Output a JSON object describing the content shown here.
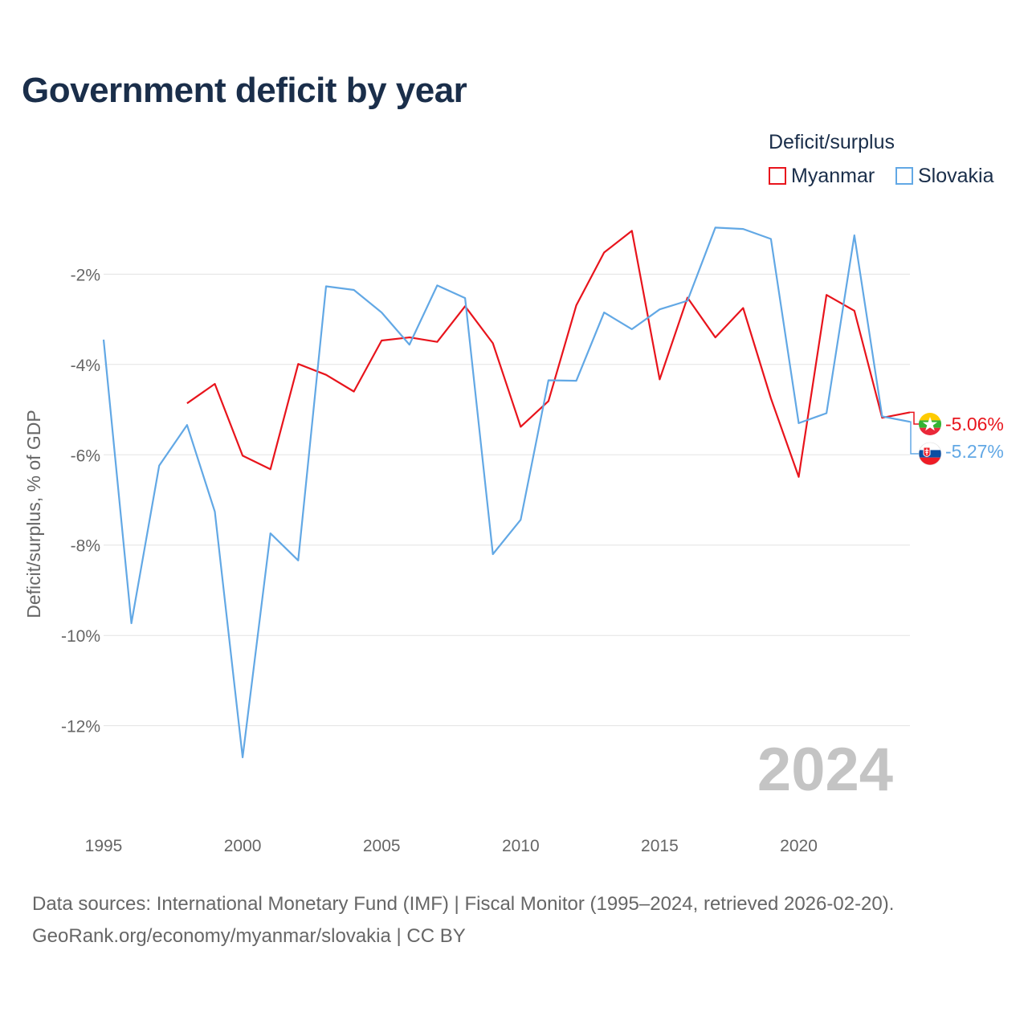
{
  "title": "Government deficit by year",
  "legend": {
    "title": "Deficit/surplus",
    "items": [
      {
        "name": "Myanmar",
        "color": "#e8141c"
      },
      {
        "name": "Slovakia",
        "color": "#62a8e5"
      }
    ]
  },
  "year_stamp": "2024",
  "footer": {
    "line1": "Data sources: International Monetary Fund (IMF) | Fiscal Monitor (1995–2024, retrieved 2026-02-20).",
    "line2": "GeoRank.org/economy/myanmar/slovakia | CC BY"
  },
  "chart_data": {
    "type": "line",
    "title": "Government deficit by year",
    "xlabel": "",
    "ylabel": "Deficit/surplus, % of GDP",
    "xlim": [
      1995,
      2024
    ],
    "ylim": [
      -13.5,
      -0.5
    ],
    "x_ticks": [
      1995,
      2000,
      2005,
      2010,
      2015,
      2020
    ],
    "y_ticks": [
      -2,
      -4,
      -6,
      -8,
      -10,
      -12
    ],
    "y_tick_labels": [
      "-2%",
      "-4%",
      "-6%",
      "-8%",
      "-10%",
      "-12%"
    ],
    "grid": true,
    "legend_position": "top-right",
    "series": [
      {
        "name": "Myanmar",
        "color": "#e8141c",
        "end_label": "-5.06%",
        "points": [
          [
            1998,
            -4.86
          ],
          [
            1999,
            -4.43
          ],
          [
            2000,
            -6.02
          ],
          [
            2001,
            -6.32
          ],
          [
            2002,
            -3.99
          ],
          [
            2003,
            -4.23
          ],
          [
            2004,
            -4.6
          ],
          [
            2005,
            -3.47
          ],
          [
            2006,
            -3.4
          ],
          [
            2007,
            -3.5
          ],
          [
            2008,
            -2.71
          ],
          [
            2009,
            -3.53
          ],
          [
            2010,
            -5.38
          ],
          [
            2011,
            -4.81
          ],
          [
            2012,
            -2.69
          ],
          [
            2013,
            -1.52
          ],
          [
            2014,
            -1.04
          ],
          [
            2015,
            -4.33
          ],
          [
            2016,
            -2.52
          ],
          [
            2017,
            -3.4
          ],
          [
            2018,
            -2.75
          ],
          [
            2019,
            -4.75
          ],
          [
            2020,
            -6.49
          ],
          [
            2021,
            -2.46
          ],
          [
            2022,
            -2.81
          ],
          [
            2023,
            -5.18
          ],
          [
            2024,
            -5.06
          ]
        ]
      },
      {
        "name": "Slovakia",
        "color": "#62a8e5",
        "end_label": "-5.27%",
        "points": [
          [
            1995,
            -3.45
          ],
          [
            1996,
            -9.73
          ],
          [
            1997,
            -6.24
          ],
          [
            1998,
            -5.34
          ],
          [
            1999,
            -7.26
          ],
          [
            2000,
            -12.7
          ],
          [
            2001,
            -7.74
          ],
          [
            2002,
            -8.34
          ],
          [
            2003,
            -2.27
          ],
          [
            2004,
            -2.35
          ],
          [
            2005,
            -2.85
          ],
          [
            2006,
            -3.56
          ],
          [
            2007,
            -2.25
          ],
          [
            2008,
            -2.53
          ],
          [
            2009,
            -8.2
          ],
          [
            2010,
            -7.44
          ],
          [
            2011,
            -4.35
          ],
          [
            2012,
            -4.36
          ],
          [
            2013,
            -2.85
          ],
          [
            2014,
            -3.22
          ],
          [
            2015,
            -2.78
          ],
          [
            2016,
            -2.59
          ],
          [
            2017,
            -0.97
          ],
          [
            2018,
            -1.0
          ],
          [
            2019,
            -1.22
          ],
          [
            2020,
            -5.3
          ],
          [
            2021,
            -5.08
          ],
          [
            2022,
            -1.14
          ],
          [
            2023,
            -5.15
          ],
          [
            2024,
            -5.27
          ]
        ]
      }
    ]
  }
}
